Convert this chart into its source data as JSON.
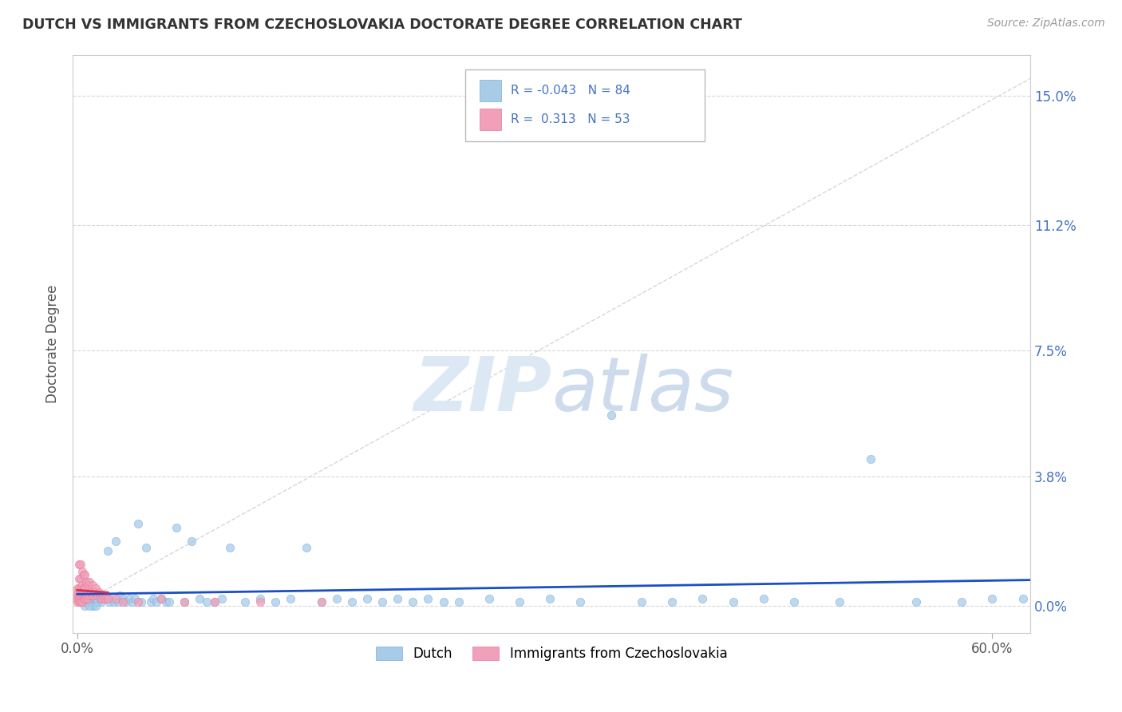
{
  "title": "DUTCH VS IMMIGRANTS FROM CZECHOSLOVAKIA DOCTORATE DEGREE CORRELATION CHART",
  "source": "Source: ZipAtlas.com",
  "ylabel_label": "Doctorate Degree",
  "xlim": [
    -0.003,
    0.625
  ],
  "ylim": [
    -0.008,
    0.162
  ],
  "ytick_vals": [
    0.0,
    0.038,
    0.075,
    0.112,
    0.15
  ],
  "ytick_labels": [
    "0.0%",
    "3.8%",
    "7.5%",
    "11.2%",
    "15.0%"
  ],
  "xtick_vals": [
    0.0,
    0.6
  ],
  "xtick_labels": [
    "0.0%",
    "60.0%"
  ],
  "dutch_color": "#a8cce8",
  "czech_color": "#f0a0b8",
  "dutch_edge_color": "#7aadda",
  "czech_edge_color": "#e87898",
  "dutch_line_color": "#1a4fc4",
  "czech_line_color": "#d43050",
  "diag_line_color": "#cccccc",
  "grid_color": "#d8d8d8",
  "watermark_color": "#dce8f4",
  "right_tick_color": "#4472c4",
  "dutch_x": [
    0.001,
    0.002,
    0.003,
    0.003,
    0.004,
    0.005,
    0.006,
    0.007,
    0.008,
    0.009,
    0.01,
    0.01,
    0.011,
    0.012,
    0.013,
    0.014,
    0.015,
    0.016,
    0.017,
    0.018,
    0.02,
    0.021,
    0.022,
    0.024,
    0.025,
    0.027,
    0.028,
    0.03,
    0.032,
    0.034,
    0.036,
    0.038,
    0.04,
    0.042,
    0.045,
    0.048,
    0.05,
    0.052,
    0.055,
    0.058,
    0.06,
    0.065,
    0.07,
    0.075,
    0.08,
    0.085,
    0.09,
    0.095,
    0.1,
    0.11,
    0.12,
    0.13,
    0.14,
    0.15,
    0.16,
    0.17,
    0.18,
    0.19,
    0.2,
    0.21,
    0.22,
    0.23,
    0.24,
    0.25,
    0.27,
    0.29,
    0.31,
    0.33,
    0.35,
    0.37,
    0.39,
    0.41,
    0.43,
    0.45,
    0.47,
    0.5,
    0.52,
    0.55,
    0.58,
    0.6,
    0.005,
    0.008,
    0.012,
    0.62
  ],
  "dutch_y": [
    0.002,
    0.001,
    0.003,
    0.001,
    0.002,
    0.001,
    0.002,
    0.001,
    0.003,
    0.001,
    0.002,
    0.0,
    0.001,
    0.002,
    0.001,
    0.003,
    0.002,
    0.001,
    0.003,
    0.002,
    0.016,
    0.001,
    0.002,
    0.001,
    0.019,
    0.001,
    0.003,
    0.002,
    0.001,
    0.002,
    0.001,
    0.002,
    0.024,
    0.001,
    0.017,
    0.001,
    0.002,
    0.001,
    0.002,
    0.001,
    0.001,
    0.023,
    0.001,
    0.019,
    0.002,
    0.001,
    0.001,
    0.002,
    0.017,
    0.001,
    0.002,
    0.001,
    0.002,
    0.017,
    0.001,
    0.002,
    0.001,
    0.002,
    0.001,
    0.002,
    0.001,
    0.002,
    0.001,
    0.001,
    0.002,
    0.001,
    0.002,
    0.001,
    0.056,
    0.001,
    0.001,
    0.002,
    0.001,
    0.002,
    0.001,
    0.001,
    0.043,
    0.001,
    0.001,
    0.002,
    0.0,
    0.0,
    0.0,
    0.002
  ],
  "czech_x": [
    0.0,
    0.0,
    0.0,
    0.0,
    0.0,
    0.001,
    0.001,
    0.001,
    0.001,
    0.001,
    0.001,
    0.002,
    0.002,
    0.002,
    0.002,
    0.002,
    0.003,
    0.003,
    0.003,
    0.003,
    0.004,
    0.004,
    0.004,
    0.005,
    0.005,
    0.005,
    0.006,
    0.006,
    0.007,
    0.007,
    0.008,
    0.008,
    0.009,
    0.01,
    0.01,
    0.011,
    0.012,
    0.013,
    0.014,
    0.015,
    0.016,
    0.017,
    0.018,
    0.019,
    0.02,
    0.025,
    0.03,
    0.04,
    0.055,
    0.07,
    0.09,
    0.12,
    0.16
  ],
  "czech_y": [
    0.001,
    0.002,
    0.003,
    0.004,
    0.005,
    0.001,
    0.002,
    0.003,
    0.005,
    0.008,
    0.012,
    0.001,
    0.003,
    0.005,
    0.008,
    0.012,
    0.001,
    0.003,
    0.006,
    0.01,
    0.002,
    0.005,
    0.009,
    0.002,
    0.005,
    0.009,
    0.003,
    0.007,
    0.002,
    0.006,
    0.003,
    0.007,
    0.004,
    0.003,
    0.006,
    0.004,
    0.005,
    0.003,
    0.004,
    0.003,
    0.002,
    0.003,
    0.002,
    0.003,
    0.002,
    0.002,
    0.001,
    0.001,
    0.002,
    0.001,
    0.001,
    0.001,
    0.001
  ]
}
